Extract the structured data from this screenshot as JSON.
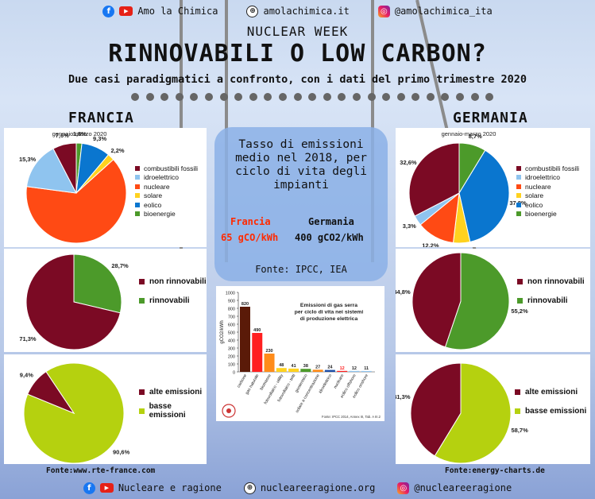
{
  "header": {
    "facebook_youtube_label": "Amo la Chimica",
    "website": "amolachimica.it",
    "instagram": "@amolachimica_ita"
  },
  "kicker": "NUCLEAR WEEK",
  "title": "RINNOVABILI O LOW CARBON?",
  "subtitle": "Due casi paradigmatici a confronto, con i dati del primo trimestre 2020",
  "france": {
    "heading": "FRANCIA",
    "source": "Fonte:www.rte-france.com"
  },
  "germany": {
    "heading": "GERMANIA",
    "source": "Fonte:energy-charts.de"
  },
  "center": {
    "title": "Tasso di emissioni medio nel 2018, per ciclo di vita degli impianti",
    "france_label": "Francia",
    "france_value": "65 gCO/kWh",
    "germany_label": "Germania",
    "germany_value": "400 gCO2/kWh",
    "source": "Fonte: IPCC, IEA"
  },
  "footer": {
    "label": "Nucleare e ragione",
    "website": "nucleareeragione.org",
    "instagram": "@nucleareeragione"
  },
  "colors": {
    "combustibili": "#7b0a24",
    "idroelettrico": "#8fc4ef",
    "nucleare": "#ff4a14",
    "solare": "#ffd21f",
    "eolico": "#0a76cf",
    "bioenergie": "#4c9a2a",
    "non_rinnovabili": "#7b0a24",
    "rinnovabili": "#4c9a2a",
    "alte": "#7b0a24",
    "basse": "#b5d10f",
    "france_red": "#ff2a00"
  },
  "chart_data": [
    {
      "id": "france-mix",
      "type": "pie",
      "title": "gennaio-marzo 2020",
      "categories": [
        "combustibili fossili",
        "idroelettrico",
        "nucleare",
        "solare",
        "eolico",
        "bioenergie"
      ],
      "values": [
        7.6,
        15.3,
        63.7,
        2.2,
        9.3,
        1.8
      ],
      "labels": [
        "7,6%",
        "15,3%",
        "63,7%",
        "2,2%",
        "9,3%",
        "1,8%"
      ]
    },
    {
      "id": "france-renew",
      "type": "pie",
      "categories": [
        "non rinnovabili",
        "rinnovabili"
      ],
      "values": [
        71.3,
        28.7
      ],
      "labels": [
        "71,3%",
        "28,7%"
      ]
    },
    {
      "id": "france-emissions",
      "type": "pie",
      "categories": [
        "alte emissioni",
        "basse emissioni"
      ],
      "values": [
        9.4,
        90.6
      ],
      "labels": [
        "9,4%",
        "90,6%"
      ]
    },
    {
      "id": "germany-mix",
      "type": "pie",
      "title": "gennaio-marzo 2020",
      "categories": [
        "combustibili fossili",
        "idroelettrico",
        "nucleare",
        "solare",
        "eolico",
        "bioenergie"
      ],
      "values": [
        32.6,
        3.3,
        12.2,
        5.4,
        37.8,
        8.7
      ],
      "labels": [
        "32,6%",
        "3,3%",
        "12,2%",
        "5,4%",
        "37,8%",
        "8,7%"
      ]
    },
    {
      "id": "germany-renew",
      "type": "pie",
      "categories": [
        "non rinnovabili",
        "rinnovabili"
      ],
      "values": [
        44.8,
        55.2
      ],
      "labels": [
        "44,8%",
        "55,2%"
      ]
    },
    {
      "id": "germany-emissions",
      "type": "pie",
      "categories": [
        "alte emissioni",
        "basse emissioni"
      ],
      "values": [
        41.3,
        58.7
      ],
      "labels": [
        "41,3%",
        "58,7%"
      ]
    },
    {
      "id": "ipcc-bars",
      "type": "bar",
      "title": "Emissioni di gas serra per ciclo di vita nei sistemi di produzione elettrica",
      "ylabel": "gCO2/kWh",
      "ylim": [
        0,
        1000
      ],
      "yticks": [
        0,
        100,
        200,
        300,
        400,
        500,
        600,
        700,
        800,
        900,
        1000
      ],
      "categories": [
        "carbone",
        "gas naturale",
        "biomasse",
        "fotovoltaico - utility",
        "fotovoltaico - tetti",
        "geotermico",
        "solare a concentrazione",
        "idroelettrico",
        "nucleare",
        "eolico offshore",
        "eolico onshore"
      ],
      "values": [
        820,
        490,
        230,
        48,
        41,
        38,
        27,
        24,
        12,
        12,
        11
      ],
      "bar_colors": [
        "#5a1a08",
        "#ff2020",
        "#ff8c1a",
        "#ffd21f",
        "#ffd21f",
        "#4c9a2a",
        "#ff8c1a",
        "#1e4fa8",
        "#ff2020",
        "#8fc4ef",
        "#8fc4ef"
      ],
      "note": "Fonte: IPCC 2014, Annex III, Tab. A III.2"
    }
  ]
}
